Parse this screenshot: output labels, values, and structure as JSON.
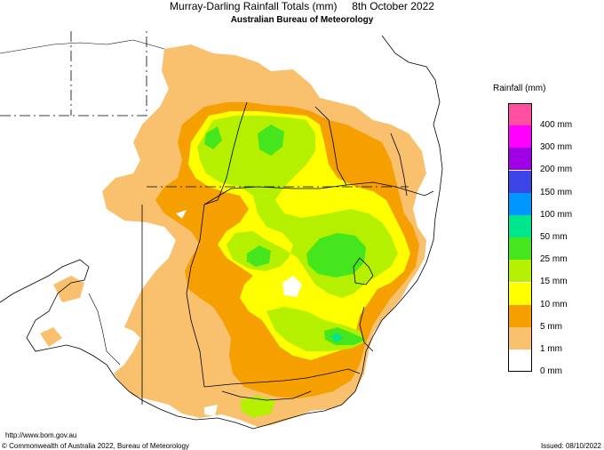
{
  "header": {
    "title": "Murray-Darling Rainfall Totals (mm)     8th October 2022",
    "subtitle": "Australian Bureau of Meteorology"
  },
  "legend": {
    "title": "Rainfall (mm)",
    "items": [
      {
        "label": "400 mm",
        "color": "#ff4fa0"
      },
      {
        "label": "300 mm",
        "color": "#ff00ff"
      },
      {
        "label": "200 mm",
        "color": "#a000e6"
      },
      {
        "label": "150 mm",
        "color": "#3c46e6"
      },
      {
        "label": "100 mm",
        "color": "#0096ff"
      },
      {
        "label": "50 mm",
        "color": "#00e68c"
      },
      {
        "label": "25 mm",
        "color": "#46e61e"
      },
      {
        "label": "15 mm",
        "color": "#b4f000"
      },
      {
        "label": "10 mm",
        "color": "#ffff00"
      },
      {
        "label": "5 mm",
        "color": "#f5a000"
      },
      {
        "label": "1 mm",
        "color": "#f9c06e"
      },
      {
        "label": "0 mm",
        "color": "#ffffff"
      }
    ]
  },
  "footer": {
    "url": "http://www.bom.gov.au",
    "copyright": "© Commonwealth of Australia 2022, Bureau of Meteorology",
    "issued": "Issued: 08/10/2022"
  }
}
